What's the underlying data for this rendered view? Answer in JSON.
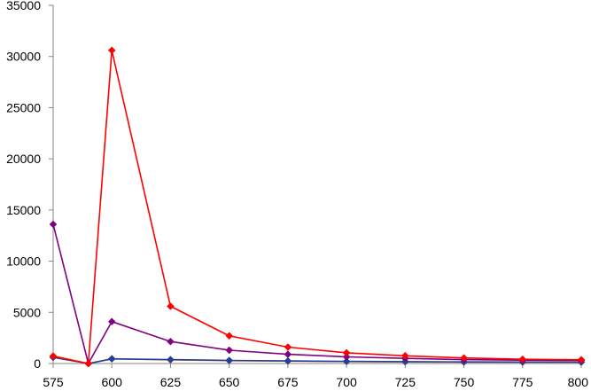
{
  "chart_data": {
    "type": "line",
    "x": [
      575,
      590,
      600,
      625,
      650,
      675,
      700,
      725,
      750,
      775,
      800
    ],
    "xlim": [
      575,
      800
    ],
    "x_ticks": [
      575,
      600,
      625,
      650,
      675,
      700,
      725,
      750,
      775,
      800
    ],
    "ylim": [
      0,
      35000
    ],
    "y_ticks": [
      0,
      5000,
      10000,
      15000,
      20000,
      25000,
      30000,
      35000
    ],
    "grid": false,
    "legend": "none",
    "series": [
      {
        "color": "#ff0000",
        "marker": "diamond",
        "values": [
          700,
          0,
          30600,
          5600,
          2700,
          1600,
          1050,
          750,
          550,
          420,
          360
        ]
      },
      {
        "color": "#800080",
        "marker": "diamond",
        "values": [
          13600,
          0,
          4100,
          2150,
          1300,
          900,
          650,
          500,
          380,
          330,
          300
        ]
      },
      {
        "color": "#2040a0",
        "marker": "diamond",
        "values": [
          600,
          0,
          450,
          380,
          300,
          250,
          210,
          180,
          160,
          150,
          140
        ]
      },
      {
        "color": "#ff8000",
        "marker": "diamond",
        "values": [
          750,
          0,
          480,
          350,
          280,
          230,
          190,
          160,
          140,
          130,
          120
        ]
      }
    ]
  }
}
